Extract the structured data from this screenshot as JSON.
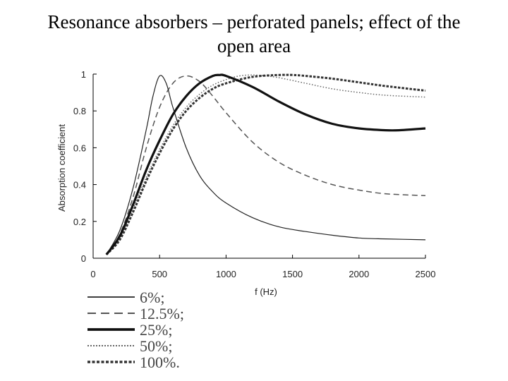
{
  "slide": {
    "title_line1": "Resonance absorbers – perforated panels; effect of the",
    "title_line2": "open area"
  },
  "chart_data": {
    "type": "line",
    "xlabel": "f (Hz)",
    "ylabel": "Absorption coefficient",
    "xlim": [
      0,
      2500
    ],
    "ylim": [
      0,
      1
    ],
    "xticks": [
      0,
      500,
      1000,
      1500,
      2000,
      2500
    ],
    "yticks": [
      0,
      0.2,
      0.4,
      0.6,
      0.8,
      1
    ],
    "ytick_labels": [
      "0",
      "0.2",
      "0.4",
      "0.6",
      "0.8",
      "1"
    ],
    "grid": false,
    "legend_position": "bottom-left",
    "series": [
      {
        "name": "6%;",
        "style": "solid-thin",
        "x": [
          100,
          200,
          300,
          400,
          450,
          500,
          550,
          600,
          700,
          800,
          900,
          1000,
          1200,
          1400,
          1600,
          1800,
          2000,
          2200,
          2500
        ],
        "y": [
          0.02,
          0.15,
          0.38,
          0.7,
          0.88,
          0.99,
          0.95,
          0.82,
          0.6,
          0.45,
          0.36,
          0.3,
          0.22,
          0.17,
          0.145,
          0.125,
          0.11,
          0.105,
          0.1
        ]
      },
      {
        "name": "12.5%;",
        "style": "dashed",
        "x": [
          100,
          200,
          300,
          400,
          500,
          600,
          700,
          800,
          900,
          1000,
          1200,
          1400,
          1600,
          1800,
          2000,
          2200,
          2500
        ],
        "y": [
          0.02,
          0.13,
          0.33,
          0.6,
          0.82,
          0.95,
          0.99,
          0.96,
          0.88,
          0.79,
          0.63,
          0.52,
          0.45,
          0.4,
          0.37,
          0.35,
          0.34
        ]
      },
      {
        "name": "25%;",
        "style": "solid-thick",
        "x": [
          100,
          200,
          300,
          400,
          500,
          600,
          700,
          800,
          900,
          950,
          1000,
          1200,
          1400,
          1600,
          1800,
          2000,
          2200,
          2300,
          2500
        ],
        "y": [
          0.02,
          0.12,
          0.29,
          0.48,
          0.64,
          0.78,
          0.88,
          0.95,
          0.99,
          0.995,
          0.99,
          0.93,
          0.85,
          0.78,
          0.73,
          0.705,
          0.695,
          0.695,
          0.705
        ]
      },
      {
        "name": "50%;",
        "style": "dotted",
        "x": [
          100,
          200,
          300,
          400,
          500,
          600,
          700,
          800,
          900,
          1000,
          1100,
          1200,
          1300,
          1400,
          1600,
          1800,
          2000,
          2200,
          2500
        ],
        "y": [
          0.02,
          0.11,
          0.27,
          0.44,
          0.59,
          0.72,
          0.82,
          0.89,
          0.94,
          0.97,
          0.99,
          0.995,
          0.99,
          0.98,
          0.95,
          0.92,
          0.9,
          0.885,
          0.875
        ]
      },
      {
        "name": "100%.",
        "style": "dashed-thick",
        "x": [
          100,
          200,
          300,
          400,
          500,
          600,
          700,
          800,
          900,
          1000,
          1200,
          1400,
          1500,
          1600,
          1800,
          2000,
          2200,
          2500
        ],
        "y": [
          0.02,
          0.1,
          0.25,
          0.42,
          0.57,
          0.7,
          0.8,
          0.87,
          0.92,
          0.95,
          0.985,
          0.995,
          0.995,
          0.99,
          0.975,
          0.955,
          0.935,
          0.91
        ]
      }
    ]
  }
}
